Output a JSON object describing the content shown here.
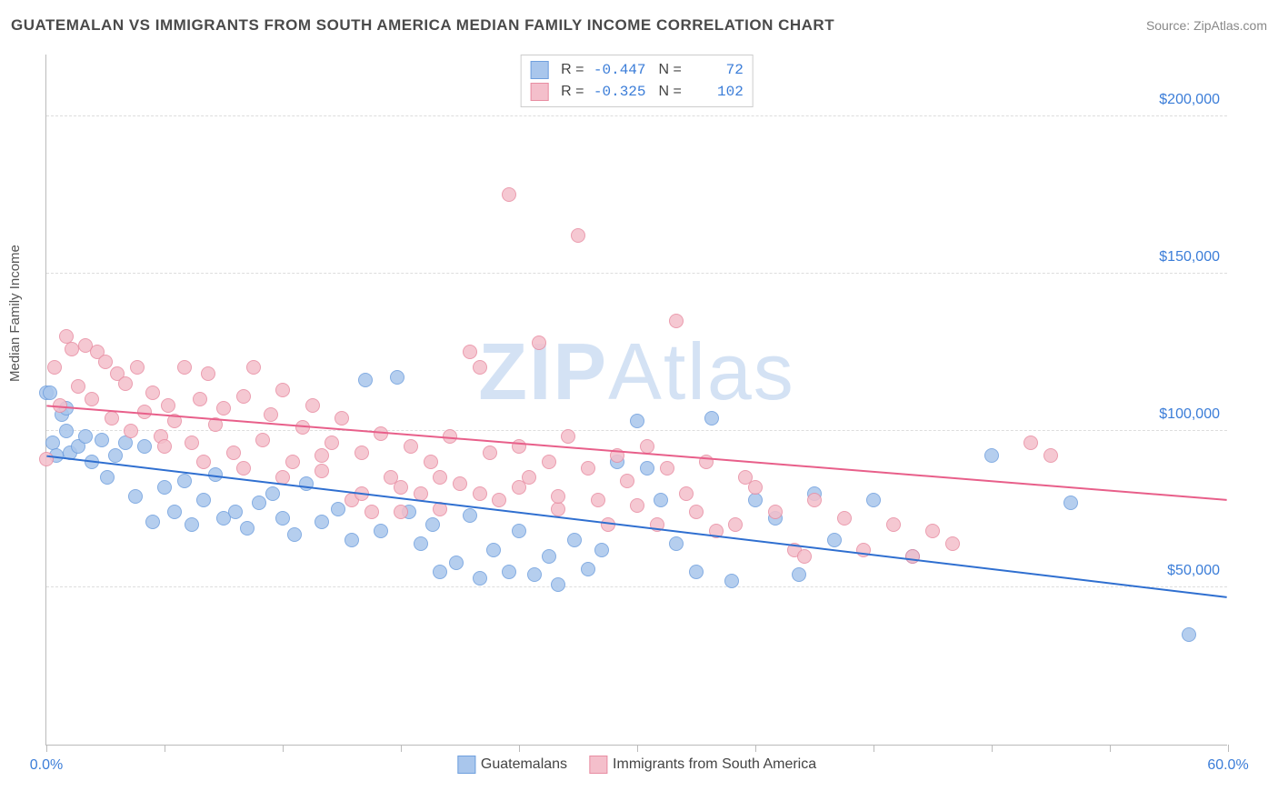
{
  "header": {
    "title": "GUATEMALAN VS IMMIGRANTS FROM SOUTH AMERICA MEDIAN FAMILY INCOME CORRELATION CHART",
    "source_prefix": "Source: ",
    "source_name": "ZipAtlas.com"
  },
  "watermark": {
    "zip": "ZIP",
    "atlas": "Atlas"
  },
  "chart": {
    "type": "scatter",
    "y_axis_label": "Median Family Income",
    "background_color": "#ffffff",
    "grid_color": "#dddddd",
    "axis_color": "#bbbbbb",
    "tick_label_color": "#3b7dd8",
    "xlim": [
      0,
      60
    ],
    "ylim": [
      0,
      220000
    ],
    "x_ticks": [
      0,
      6,
      12,
      18,
      24,
      30,
      36,
      42,
      48,
      54,
      60
    ],
    "x_tick_labels": {
      "0": "0.0%",
      "60": "60.0%"
    },
    "y_ticks": [
      50000,
      100000,
      150000,
      200000
    ],
    "y_tick_labels": {
      "50000": "$50,000",
      "100000": "$100,000",
      "150000": "$150,000",
      "200000": "$200,000"
    },
    "marker_radius": 8,
    "marker_stroke_width": 1.5,
    "marker_fill_opacity": 0.35,
    "series": [
      {
        "key": "guatemalans",
        "label": "Guatemalans",
        "fill": "#a9c6ec",
        "stroke": "#6f9fde",
        "trend_color": "#2f6fd0",
        "R": "-0.447",
        "N": "72",
        "trend": {
          "x1": 0,
          "y1": 92000,
          "x2": 60,
          "y2": 47000
        },
        "points": [
          [
            0.0,
            112000
          ],
          [
            0.3,
            96000
          ],
          [
            0.5,
            92000
          ],
          [
            0.8,
            105000
          ],
          [
            1.0,
            100000
          ],
          [
            1.2,
            93000
          ],
          [
            1.6,
            95000
          ],
          [
            2.0,
            98000
          ],
          [
            2.3,
            90000
          ],
          [
            2.8,
            97000
          ],
          [
            3.1,
            85000
          ],
          [
            3.5,
            92000
          ],
          [
            4.0,
            96000
          ],
          [
            4.5,
            79000
          ],
          [
            5.0,
            95000
          ],
          [
            5.4,
            71000
          ],
          [
            6.0,
            82000
          ],
          [
            6.5,
            74000
          ],
          [
            7.0,
            84000
          ],
          [
            7.4,
            70000
          ],
          [
            8.0,
            78000
          ],
          [
            8.6,
            86000
          ],
          [
            9.0,
            72000
          ],
          [
            9.6,
            74000
          ],
          [
            10.2,
            69000
          ],
          [
            10.8,
            77000
          ],
          [
            11.5,
            80000
          ],
          [
            12.0,
            72000
          ],
          [
            12.6,
            67000
          ],
          [
            13.2,
            83000
          ],
          [
            14.0,
            71000
          ],
          [
            14.8,
            75000
          ],
          [
            15.5,
            65000
          ],
          [
            16.2,
            116000
          ],
          [
            17.0,
            68000
          ],
          [
            17.8,
            117000
          ],
          [
            18.4,
            74000
          ],
          [
            19.0,
            64000
          ],
          [
            19.6,
            70000
          ],
          [
            20.0,
            55000
          ],
          [
            20.8,
            58000
          ],
          [
            21.5,
            73000
          ],
          [
            22.0,
            53000
          ],
          [
            22.7,
            62000
          ],
          [
            23.5,
            55000
          ],
          [
            24.0,
            68000
          ],
          [
            24.8,
            54000
          ],
          [
            25.5,
            60000
          ],
          [
            26.0,
            51000
          ],
          [
            26.8,
            65000
          ],
          [
            27.5,
            56000
          ],
          [
            28.2,
            62000
          ],
          [
            29.0,
            90000
          ],
          [
            30.0,
            103000
          ],
          [
            30.5,
            88000
          ],
          [
            31.2,
            78000
          ],
          [
            32.0,
            64000
          ],
          [
            33.0,
            55000
          ],
          [
            33.8,
            104000
          ],
          [
            34.8,
            52000
          ],
          [
            36.0,
            78000
          ],
          [
            37.0,
            72000
          ],
          [
            38.2,
            54000
          ],
          [
            39.0,
            80000
          ],
          [
            40.0,
            65000
          ],
          [
            42.0,
            78000
          ],
          [
            44.0,
            60000
          ],
          [
            48.0,
            92000
          ],
          [
            52.0,
            77000
          ],
          [
            58.0,
            35000
          ],
          [
            0.2,
            112000
          ],
          [
            1.0,
            107000
          ]
        ]
      },
      {
        "key": "south_america",
        "label": "Immigrants from South America",
        "fill": "#f4bfcb",
        "stroke": "#e88da2",
        "trend_color": "#e85f8a",
        "R": "-0.325",
        "N": "102",
        "trend": {
          "x1": 0,
          "y1": 108000,
          "x2": 60,
          "y2": 78000
        },
        "points": [
          [
            0.0,
            91000
          ],
          [
            0.4,
            120000
          ],
          [
            0.7,
            108000
          ],
          [
            1.0,
            130000
          ],
          [
            1.3,
            126000
          ],
          [
            1.6,
            114000
          ],
          [
            2.0,
            127000
          ],
          [
            2.3,
            110000
          ],
          [
            2.6,
            125000
          ],
          [
            3.0,
            122000
          ],
          [
            3.3,
            104000
          ],
          [
            3.6,
            118000
          ],
          [
            4.0,
            115000
          ],
          [
            4.3,
            100000
          ],
          [
            4.6,
            120000
          ],
          [
            5.0,
            106000
          ],
          [
            5.4,
            112000
          ],
          [
            5.8,
            98000
          ],
          [
            6.2,
            108000
          ],
          [
            6.5,
            103000
          ],
          [
            7.0,
            120000
          ],
          [
            7.4,
            96000
          ],
          [
            7.8,
            110000
          ],
          [
            8.2,
            118000
          ],
          [
            8.6,
            102000
          ],
          [
            9.0,
            107000
          ],
          [
            9.5,
            93000
          ],
          [
            10.0,
            111000
          ],
          [
            10.5,
            120000
          ],
          [
            11.0,
            97000
          ],
          [
            11.4,
            105000
          ],
          [
            12.0,
            113000
          ],
          [
            12.5,
            90000
          ],
          [
            13.0,
            101000
          ],
          [
            13.5,
            108000
          ],
          [
            14.0,
            87000
          ],
          [
            14.5,
            96000
          ],
          [
            15.0,
            104000
          ],
          [
            15.5,
            78000
          ],
          [
            16.0,
            93000
          ],
          [
            16.5,
            74000
          ],
          [
            17.0,
            99000
          ],
          [
            17.5,
            85000
          ],
          [
            18.0,
            74000
          ],
          [
            18.5,
            95000
          ],
          [
            19.0,
            80000
          ],
          [
            19.5,
            90000
          ],
          [
            20.0,
            75000
          ],
          [
            20.5,
            98000
          ],
          [
            21.0,
            83000
          ],
          [
            21.5,
            125000
          ],
          [
            22.0,
            120000
          ],
          [
            22.5,
            93000
          ],
          [
            23.0,
            78000
          ],
          [
            23.5,
            175000
          ],
          [
            24.0,
            95000
          ],
          [
            24.5,
            85000
          ],
          [
            25.0,
            128000
          ],
          [
            25.5,
            90000
          ],
          [
            26.0,
            75000
          ],
          [
            26.5,
            98000
          ],
          [
            27.0,
            162000
          ],
          [
            27.5,
            88000
          ],
          [
            28.0,
            78000
          ],
          [
            28.5,
            70000
          ],
          [
            29.0,
            92000
          ],
          [
            29.5,
            84000
          ],
          [
            30.0,
            76000
          ],
          [
            30.5,
            95000
          ],
          [
            31.0,
            70000
          ],
          [
            31.5,
            88000
          ],
          [
            32.0,
            135000
          ],
          [
            32.5,
            80000
          ],
          [
            33.0,
            74000
          ],
          [
            33.5,
            90000
          ],
          [
            34.0,
            68000
          ],
          [
            35.0,
            70000
          ],
          [
            35.5,
            85000
          ],
          [
            36.0,
            82000
          ],
          [
            37.0,
            74000
          ],
          [
            38.0,
            62000
          ],
          [
            38.5,
            60000
          ],
          [
            39.0,
            78000
          ],
          [
            40.5,
            72000
          ],
          [
            41.5,
            62000
          ],
          [
            43.0,
            70000
          ],
          [
            44.0,
            60000
          ],
          [
            45.0,
            68000
          ],
          [
            46.0,
            64000
          ],
          [
            50.0,
            96000
          ],
          [
            51.0,
            92000
          ],
          [
            6.0,
            95000
          ],
          [
            8.0,
            90000
          ],
          [
            10.0,
            88000
          ],
          [
            12.0,
            85000
          ],
          [
            14.0,
            92000
          ],
          [
            16.0,
            80000
          ],
          [
            18.0,
            82000
          ],
          [
            20.0,
            85000
          ],
          [
            22.0,
            80000
          ],
          [
            24.0,
            82000
          ],
          [
            26.0,
            79000
          ]
        ]
      }
    ]
  },
  "legend_top": {
    "r_label": "R =",
    "n_label": "N ="
  }
}
